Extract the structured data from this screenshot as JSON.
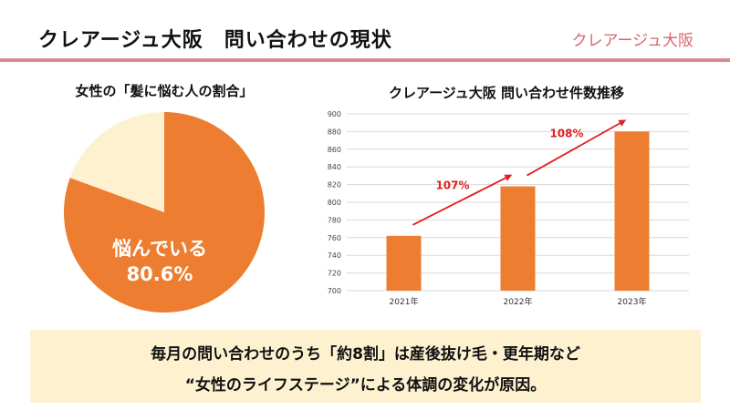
{
  "header": {
    "title": "クレアージュ大阪　問い合わせの現状",
    "brand": "クレアージュ大阪"
  },
  "summary": {
    "line1": "毎月の問い合わせのうち「約8割」は産後抜け毛・更年期など",
    "line2": "“女性のライフステージ”による体調の変化が原因。"
  },
  "colors": {
    "accent": "#d9646c",
    "bar": "#ed7d31",
    "pie_rest": "#fdf1d0",
    "arrow": "#e01f1f",
    "box": "#fdf1d0"
  },
  "chart_data": [
    {
      "type": "pie",
      "title": "女性の「髪に悩む人の割合」",
      "slices": [
        {
          "label": "悩んでいる",
          "value": 80.6,
          "display": "80.6%"
        },
        {
          "label": "",
          "value": 19.4
        }
      ]
    },
    {
      "type": "bar",
      "title": "クレアージュ大阪 問い合わせ件数推移",
      "categories": [
        "2021年",
        "2022年",
        "2023年"
      ],
      "values": [
        762,
        818,
        880
      ],
      "ylim": [
        700,
        900
      ],
      "yticks": [
        700,
        720,
        740,
        760,
        780,
        800,
        820,
        840,
        860,
        880,
        900
      ],
      "grid": true,
      "annotations": [
        {
          "text": "107%",
          "from": 0,
          "to": 1
        },
        {
          "text": "108%",
          "from": 1,
          "to": 2
        }
      ]
    }
  ]
}
